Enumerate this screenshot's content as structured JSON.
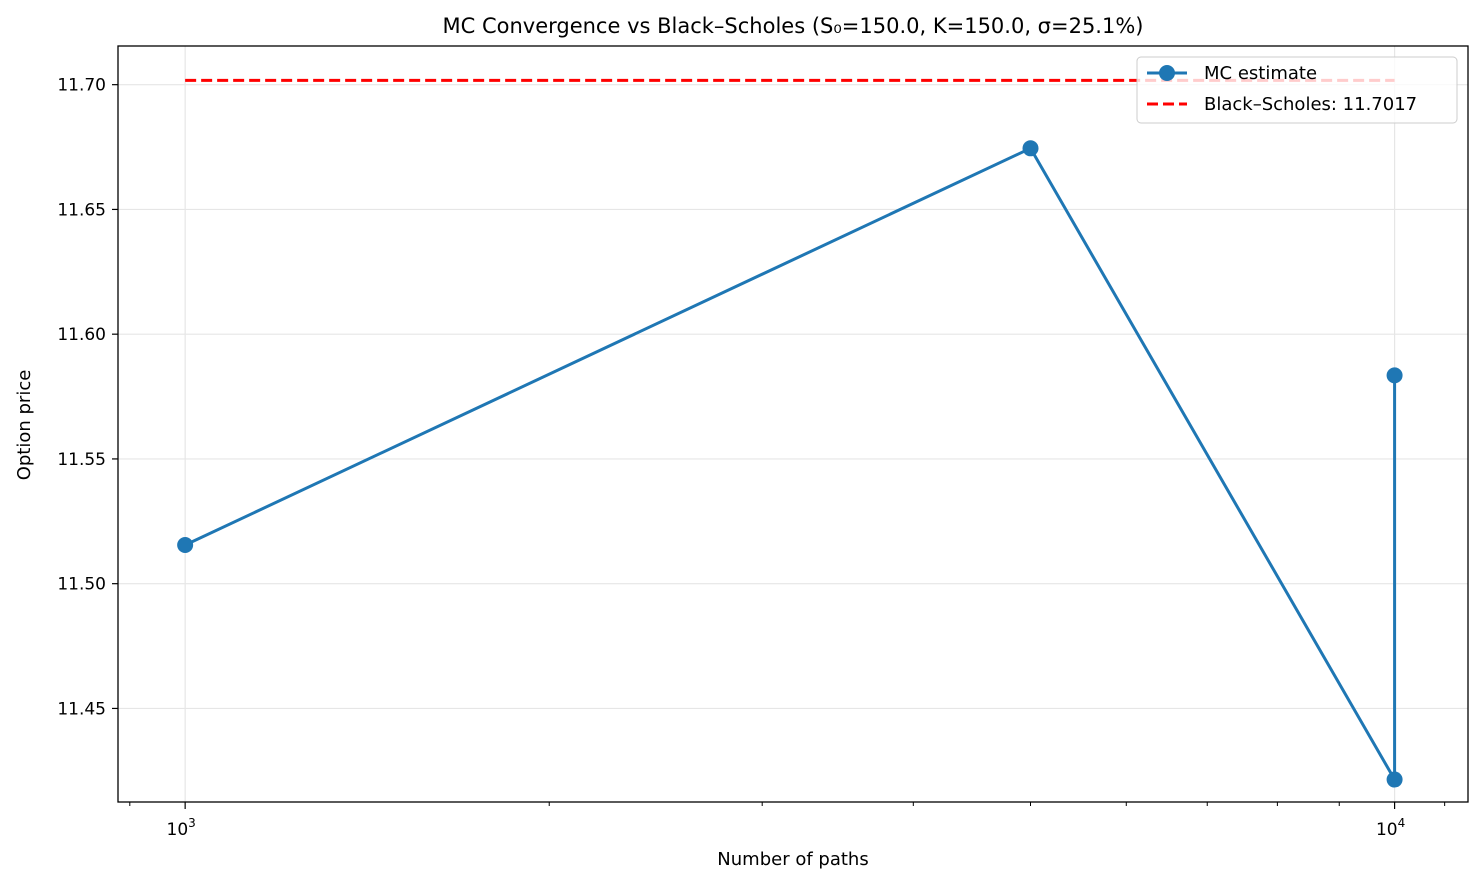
{
  "chart_data": {
    "type": "line",
    "title": "MC Convergence vs Black–Scholes (S₀=150.0, K=150.0, σ=25.1%)",
    "xlabel": "Number of paths",
    "ylabel": "Option price",
    "xscale": "log",
    "xlim": [
      880,
      11500
    ],
    "ylim": [
      11.4125,
      11.7155
    ],
    "yticks": [
      11.45,
      11.5,
      11.55,
      11.6,
      11.65,
      11.7
    ],
    "ytick_labels": [
      "11.45",
      "11.50",
      "11.55",
      "11.60",
      "11.65",
      "11.70"
    ],
    "xticks_major": [
      1000,
      10000
    ],
    "xtick_base": "10",
    "xtick_exponents": [
      "3",
      "4"
    ],
    "grid": true,
    "legend_position": "top-right",
    "series": [
      {
        "name": "MC estimate",
        "style": "line-marker",
        "color": "#1f77b4",
        "x": [
          1000,
          5000,
          10000,
          10000
        ],
        "y": [
          11.5155,
          11.6745,
          11.4215,
          11.5835
        ]
      }
    ],
    "reference_line": {
      "name": "Black–Scholes: 11.7017",
      "value": 11.7017,
      "x_range": [
        1000,
        10000
      ],
      "style": "dashed",
      "color": "#ff0000"
    }
  }
}
